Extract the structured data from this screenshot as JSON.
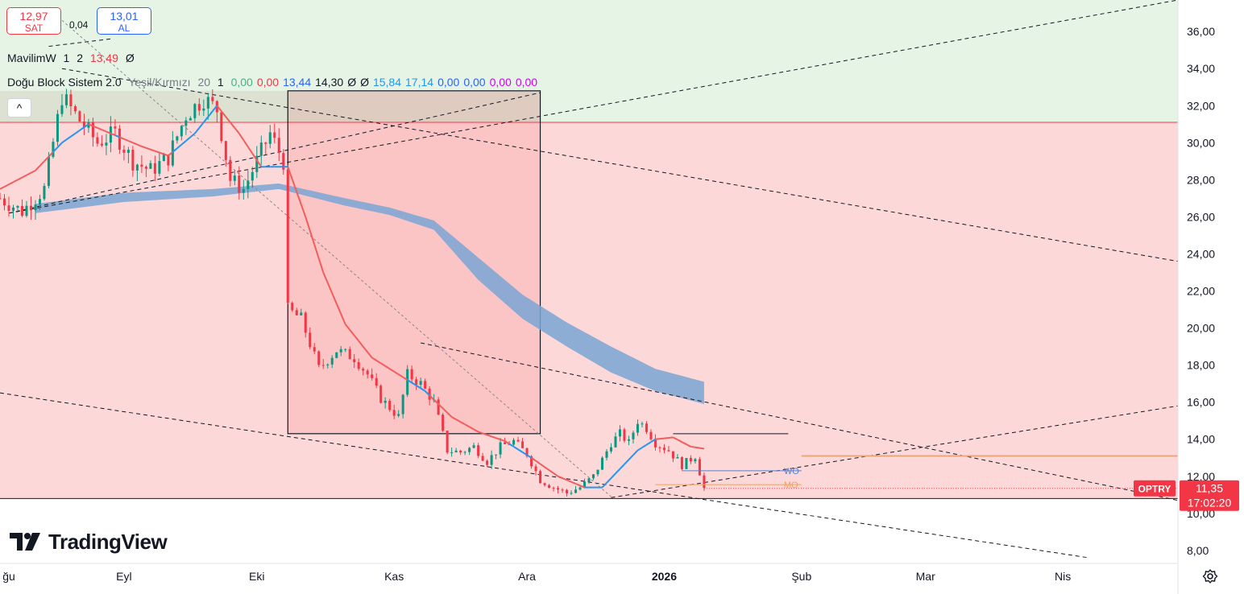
{
  "trade_panel": {
    "sell_price": "12,97",
    "sell_label": "SAT",
    "spread": "0,04",
    "buy_price": "13,01",
    "buy_label": "AL"
  },
  "legend": {
    "mavilim": {
      "name": "MavilimW",
      "params": [
        "1",
        "2"
      ],
      "value": "13,49",
      "extra": "Ø"
    },
    "dogu_block": {
      "name": "Doğu Block Sistem 2.0",
      "params": [
        "Yeşil/Kırmızı",
        "20",
        "1"
      ],
      "values": [
        {
          "text": "0,00",
          "color": "#4caf7d"
        },
        {
          "text": "0,00",
          "color": "#f23645"
        },
        {
          "text": "13,44",
          "color": "#2962ff"
        },
        {
          "text": "14,30",
          "color": "#131722"
        },
        {
          "text": "Ø",
          "color": "#131722"
        },
        {
          "text": "Ø",
          "color": "#131722"
        },
        {
          "text": "15,84",
          "color": "#2196f3"
        },
        {
          "text": "17,14",
          "color": "#2196f3"
        },
        {
          "text": "0,00",
          "color": "#2962ff"
        },
        {
          "text": "0,00",
          "color": "#2962ff"
        },
        {
          "text": "0,00",
          "color": "#d500f9"
        },
        {
          "text": "0,00",
          "color": "#d500f9"
        }
      ]
    },
    "collapse_glyph": "^"
  },
  "branding": {
    "logo_text": "TradingView"
  },
  "chart_data": {
    "type": "candlestick",
    "symbol": "OPTRY",
    "last_price": "11,35",
    "countdown": "17:02:20",
    "ylim": [
      7.3,
      37.7
    ],
    "y_ticks": [
      "8,00",
      "10,00",
      "12,00",
      "14,00",
      "16,00",
      "18,00",
      "20,00",
      "22,00",
      "24,00",
      "26,00",
      "28,00",
      "30,00",
      "32,00",
      "34,00",
      "36,00"
    ],
    "x_labels": [
      {
        "label": "ğu",
        "day": -26,
        "bold": false
      },
      {
        "label": "Eyl",
        "day": 0,
        "bold": false
      },
      {
        "label": "Eki",
        "day": 30,
        "bold": false
      },
      {
        "label": "Kas",
        "day": 61,
        "bold": false
      },
      {
        "label": "Ara",
        "day": 91,
        "bold": false
      },
      {
        "label": "2026",
        "day": 122,
        "bold": true
      },
      {
        "label": "Şub",
        "day": 153,
        "bold": false
      },
      {
        "label": "Mar",
        "day": 181,
        "bold": false
      },
      {
        "label": "Nis",
        "day": 212,
        "bold": false
      }
    ],
    "xlim": [
      -28,
      238
    ],
    "zones": [
      {
        "kind": "green",
        "y_from": 31.1,
        "y_to": 37.7
      },
      {
        "kind": "red",
        "y_from": 10.8,
        "y_to": 31.1
      }
    ],
    "rectangles": [
      {
        "x_from": -28,
        "x_to": 94,
        "y_from": 31.1,
        "y_to": 32.8
      },
      {
        "x_from": 37,
        "x_to": 94,
        "y_from": 14.3,
        "y_to": 32.8
      }
    ],
    "horizontal_levels": [
      {
        "name": "WO",
        "value": 12.3,
        "x_from": 126,
        "x_to": 153,
        "color": "#5b7fc7"
      },
      {
        "name": "MO",
        "value": 11.55,
        "x_from": 120,
        "x_to": 153,
        "color": "#f0a060"
      },
      {
        "name": "resistance",
        "value": 13.1,
        "x_from": 153,
        "x_to": 238,
        "color": "#e8a87c"
      },
      {
        "name": "block-top",
        "value": 14.3,
        "x_from": 124,
        "x_to": 150,
        "color": "#131722"
      }
    ],
    "series": {
      "close_anchors": [
        [
          -28,
          27.0
        ],
        [
          -23,
          26.3
        ],
        [
          -18,
          27.5
        ],
        [
          -14,
          32.5
        ],
        [
          -10,
          31.2
        ],
        [
          -6,
          30.0
        ],
        [
          -2,
          30.5
        ],
        [
          2,
          29.0
        ],
        [
          6,
          28.5
        ],
        [
          10,
          29.2
        ],
        [
          14,
          31.5
        ],
        [
          18,
          32.4
        ],
        [
          21,
          31.8
        ],
        [
          24,
          28.0
        ],
        [
          27,
          27.5
        ],
        [
          30,
          29.0
        ],
        [
          33,
          30.5
        ],
        [
          36,
          29.0
        ],
        [
          37,
          21.0
        ],
        [
          40,
          20.5
        ],
        [
          44,
          17.8
        ],
        [
          48,
          18.8
        ],
        [
          52,
          18.4
        ],
        [
          55,
          17.5
        ],
        [
          58,
          16.2
        ],
        [
          62,
          15.2
        ],
        [
          64,
          17.5
        ],
        [
          67,
          17.0
        ],
        [
          70,
          16.0
        ],
        [
          73,
          13.4
        ],
        [
          76,
          13.3
        ],
        [
          79,
          13.6
        ],
        [
          82,
          12.8
        ],
        [
          85,
          13.6
        ],
        [
          88,
          13.9
        ],
        [
          91,
          13.2
        ],
        [
          94,
          11.8
        ],
        [
          97,
          11.4
        ],
        [
          100,
          11.1
        ],
        [
          103,
          11.4
        ],
        [
          106,
          12.0
        ],
        [
          110,
          13.8
        ],
        [
          112,
          14.3
        ],
        [
          114,
          13.8
        ],
        [
          116,
          15.0
        ],
        [
          118,
          14.6
        ],
        [
          120,
          13.8
        ],
        [
          123,
          13.4
        ],
        [
          126,
          12.6
        ],
        [
          129,
          13.1
        ],
        [
          131,
          11.35
        ]
      ],
      "mavilim_anchors": [
        [
          -28,
          27.5
        ],
        [
          -20,
          28.5
        ],
        [
          -14,
          30.0
        ],
        [
          -8,
          31.0
        ],
        [
          -2,
          30.4
        ],
        [
          4,
          29.8
        ],
        [
          10,
          29.3
        ],
        [
          16,
          30.5
        ],
        [
          21,
          32.0
        ],
        [
          26,
          30.5
        ],
        [
          31,
          28.7
        ],
        [
          37,
          28.7
        ],
        [
          41,
          26.0
        ],
        [
          45,
          23.0
        ],
        [
          50,
          20.2
        ],
        [
          56,
          18.4
        ],
        [
          62,
          17.5
        ],
        [
          68,
          16.6
        ],
        [
          74,
          15.2
        ],
        [
          80,
          14.4
        ],
        [
          86,
          13.9
        ],
        [
          92,
          13.0
        ],
        [
          98,
          12.0
        ],
        [
          104,
          11.4
        ],
        [
          108,
          11.4
        ],
        [
          112,
          12.4
        ],
        [
          116,
          13.4
        ],
        [
          120,
          14.0
        ],
        [
          124,
          14.1
        ],
        [
          128,
          13.6
        ],
        [
          131,
          13.49
        ]
      ],
      "ribbon": {
        "x_from": -20,
        "x_to": 131,
        "upper": [
          [
            -20,
            26.7
          ],
          [
            0,
            27.3
          ],
          [
            20,
            27.5
          ],
          [
            35,
            27.8
          ],
          [
            50,
            27.0
          ],
          [
            60,
            26.5
          ],
          [
            70,
            25.8
          ],
          [
            80,
            23.8
          ],
          [
            90,
            21.8
          ],
          [
            100,
            20.3
          ],
          [
            110,
            19.0
          ],
          [
            120,
            17.8
          ],
          [
            131,
            17.1
          ]
        ],
        "lower": [
          [
            -20,
            26.2
          ],
          [
            0,
            26.8
          ],
          [
            20,
            27.1
          ],
          [
            35,
            27.5
          ],
          [
            50,
            26.6
          ],
          [
            60,
            26.1
          ],
          [
            70,
            25.3
          ],
          [
            80,
            22.6
          ],
          [
            90,
            20.5
          ],
          [
            100,
            19.0
          ],
          [
            110,
            17.6
          ],
          [
            120,
            16.6
          ],
          [
            131,
            15.9
          ]
        ]
      }
    },
    "trend_lines": [
      {
        "from": [
          -26,
          26.2
        ],
        "to": [
          94,
          32.7
        ]
      },
      {
        "from": [
          -26,
          26.2
        ],
        "to": [
          238,
          37.7
        ]
      },
      {
        "from": [
          -14,
          34.0
        ],
        "to": [
          238,
          23.6
        ]
      },
      {
        "from": [
          67,
          19.2
        ],
        "to": [
          238,
          10.7
        ]
      },
      {
        "from": [
          -28,
          16.5
        ],
        "to": [
          218,
          7.6
        ]
      },
      {
        "from": [
          110,
          10.85
        ],
        "to": [
          238,
          15.8
        ]
      },
      {
        "from": [
          -17,
          35.2
        ],
        "to": [
          -3,
          35.6
        ]
      }
    ],
    "diagonal_lines": [
      {
        "from": [
          -14,
          36.6
        ],
        "to": [
          110,
          10.9
        ]
      }
    ]
  }
}
